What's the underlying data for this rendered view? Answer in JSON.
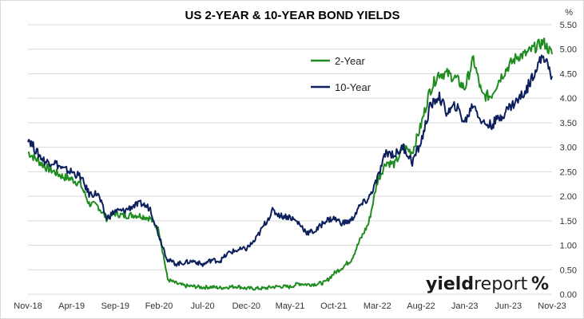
{
  "chart_data": {
    "type": "line",
    "title": "US 2-YEAR & 10-YEAR BOND YIELDS",
    "unit_label": "%",
    "xlabel": "",
    "ylabel": "",
    "ylim": [
      0,
      5.5
    ],
    "yticks": [
      "0.00",
      "0.50",
      "1.00",
      "1.50",
      "2.00",
      "2.50",
      "3.00",
      "3.50",
      "4.00",
      "4.50",
      "5.00",
      "5.50"
    ],
    "x_tick_labels": [
      "Nov-18",
      "Apr-19",
      "Sep-19",
      "Feb-20",
      "Jul-20",
      "Dec-20",
      "May-21",
      "Oct-21",
      "Mar-22",
      "Aug-22",
      "Jan-23",
      "Jun-23",
      "Nov-23"
    ],
    "grid": "horizontal",
    "legend_position": "top-center",
    "x": [
      "2018-11",
      "2018-12",
      "2019-01",
      "2019-02",
      "2019-03",
      "2019-04",
      "2019-05",
      "2019-06",
      "2019-07",
      "2019-08",
      "2019-09",
      "2019-10",
      "2019-11",
      "2019-12",
      "2020-01",
      "2020-02",
      "2020-03",
      "2020-04",
      "2020-05",
      "2020-06",
      "2020-07",
      "2020-08",
      "2020-09",
      "2020-10",
      "2020-11",
      "2020-12",
      "2021-01",
      "2021-02",
      "2021-03",
      "2021-04",
      "2021-05",
      "2021-06",
      "2021-07",
      "2021-08",
      "2021-09",
      "2021-10",
      "2021-11",
      "2021-12",
      "2022-01",
      "2022-02",
      "2022-03",
      "2022-04",
      "2022-05",
      "2022-06",
      "2022-07",
      "2022-08",
      "2022-09",
      "2022-10",
      "2022-11",
      "2022-12",
      "2023-01",
      "2023-02",
      "2023-03",
      "2023-04",
      "2023-05",
      "2023-06",
      "2023-07",
      "2023-08",
      "2023-09",
      "2023-10",
      "2023-11"
    ],
    "series": [
      {
        "name": "2-Year",
        "color": "#1e8c1e",
        "values": [
          2.9,
          2.75,
          2.6,
          2.5,
          2.4,
          2.35,
          2.25,
          1.85,
          1.8,
          1.55,
          1.65,
          1.6,
          1.62,
          1.6,
          1.55,
          1.3,
          0.3,
          0.22,
          0.17,
          0.16,
          0.14,
          0.15,
          0.13,
          0.15,
          0.16,
          0.12,
          0.12,
          0.12,
          0.15,
          0.16,
          0.15,
          0.22,
          0.2,
          0.21,
          0.24,
          0.42,
          0.55,
          0.7,
          1.1,
          1.45,
          2.3,
          2.7,
          2.65,
          3.0,
          2.9,
          3.45,
          4.15,
          4.5,
          4.5,
          4.4,
          4.2,
          4.8,
          4.05,
          4.05,
          4.4,
          4.65,
          4.85,
          4.9,
          5.03,
          5.15,
          4.9
        ]
      },
      {
        "name": "10-Year",
        "color": "#0d1f5c",
        "values": [
          3.2,
          2.9,
          2.7,
          2.7,
          2.55,
          2.5,
          2.4,
          2.05,
          2.05,
          1.55,
          1.7,
          1.7,
          1.8,
          1.85,
          1.75,
          1.2,
          0.7,
          0.62,
          0.65,
          0.68,
          0.6,
          0.7,
          0.68,
          0.85,
          0.9,
          0.93,
          1.1,
          1.4,
          1.7,
          1.6,
          1.58,
          1.45,
          1.25,
          1.3,
          1.5,
          1.55,
          1.45,
          1.5,
          1.8,
          1.95,
          2.35,
          2.9,
          2.85,
          3.0,
          2.7,
          3.1,
          3.8,
          4.05,
          3.7,
          3.85,
          3.5,
          3.9,
          3.5,
          3.45,
          3.6,
          3.8,
          3.95,
          4.15,
          4.55,
          4.88,
          4.45
        ]
      }
    ]
  },
  "logo": {
    "text_main": "yield",
    "text_second": "report",
    "mark": "%"
  },
  "colors": {
    "green": "#1e8c1e",
    "navy": "#0d1f5c",
    "grid": "#d9d9d9",
    "logo_red": "#d7191c"
  }
}
